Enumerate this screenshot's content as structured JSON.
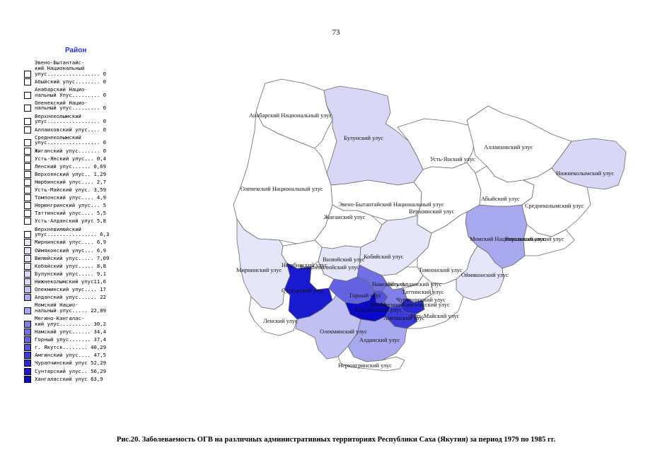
{
  "page_number": "73",
  "legend": {
    "title": "Район",
    "entries": [
      {
        "lines": [
          "Эвено-Бытантайс-",
          "кий Национальный",
          "улус................. 0"
        ],
        "color": "#ffffff"
      },
      {
        "lines": [
          "Абыйский улус........ 0"
        ],
        "color": "#ffffff"
      },
      {
        "lines": [
          "Анабарский Нацио-",
          "нальный Улус......... 0"
        ],
        "color": "#ffffff"
      },
      {
        "lines": [
          "Оленекский Нацио-",
          "нальный улус......... 0"
        ],
        "color": "#ffffff"
      },
      {
        "lines": [
          "Верхнеколымский",
          "улус................. 0"
        ],
        "color": "#ffffff"
      },
      {
        "lines": [
          "Аллаиховский улус.... 0"
        ],
        "color": "#ffffff"
      },
      {
        "lines": [
          "Среднеколымский",
          "улус................. 0"
        ],
        "color": "#ffffff"
      },
      {
        "lines": [
          "Жиганский улус....... 0"
        ],
        "color": "#ffffff"
      },
      {
        "lines": [
          "Усть-Янский улус... 0,4"
        ],
        "color": "#ffffff"
      },
      {
        "lines": [
          "Ленский улус...... 0,69"
        ],
        "color": "#ffffff"
      },
      {
        "lines": [
          "Верхоянский улус.. 1,29"
        ],
        "color": "#ffffff"
      },
      {
        "lines": [
          "Нюрбинский улус.... 2,7"
        ],
        "color": "#ffffff"
      },
      {
        "lines": [
          "Усть-Майский улус. 3,59"
        ],
        "color": "#ffffff"
      },
      {
        "lines": [
          "Томпонский улус.... 4,9"
        ],
        "color": "#ffffff"
      },
      {
        "lines": [
          "Нерюнгринский улус... 5"
        ],
        "color": "#ffffff"
      },
      {
        "lines": [
          "Таттинский улус.... 5,5"
        ],
        "color": "#ffffff"
      },
      {
        "lines": [
          "Усть-Алданский улус 5,8"
        ],
        "color": "#ffffff"
      },
      {
        "lines": [
          "Верхневилюйский",
          "улус................ 6,3"
        ],
        "color": "#ffffff"
      },
      {
        "lines": [
          "Мирнинский улус.... 6,9"
        ],
        "color": "#e6e6fa"
      },
      {
        "lines": [
          "Оймяконский улус... 6,9"
        ],
        "color": "#e6e6fa"
      },
      {
        "lines": [
          "Вилюйский улус..... 7,09"
        ],
        "color": "#e6e6fa"
      },
      {
        "lines": [
          "Кобяйский улус..... 8,8"
        ],
        "color": "#e6e6fa"
      },
      {
        "lines": [
          "Булунский улус..... 9,1"
        ],
        "color": "#d8d8f6"
      },
      {
        "lines": [
          "Нижнеколымский улус11,6"
        ],
        "color": "#d8d8f6"
      },
      {
        "lines": [
          "Олекминский улус.... 17"
        ],
        "color": "#c0c0f2"
      },
      {
        "lines": [
          "Алданский улус...... 22"
        ],
        "color": "#a8a8ee"
      },
      {
        "lines": [
          "Момский Нацио-",
          "нальный улус..... 22,89"
        ],
        "color": "#a8a8ee"
      },
      {
        "lines": [
          "Мегино-Кангалас-",
          "кий улус.......... 30,2"
        ],
        "color": "#8080e8"
      },
      {
        "lines": [
          "Намский улус...... 34,4"
        ],
        "color": "#7070e4"
      },
      {
        "lines": [
          "Горный улус....... 37,4"
        ],
        "color": "#6262e2"
      },
      {
        "lines": [
          "г. Якутск........ 40,29"
        ],
        "color": "#5252dc"
      },
      {
        "lines": [
          "Амгинский улус.... 47,5"
        ],
        "color": "#3a3ad8"
      },
      {
        "lines": [
          "Чурапчинский улус 52,29"
        ],
        "color": "#2a2ad2"
      },
      {
        "lines": [
          "Сунтарский улус.. 56,29"
        ],
        "color": "#1a1ad0"
      },
      {
        "lines": [
          "Хангаласский улус 63,9"
        ],
        "color": "#0a0ac8"
      }
    ]
  },
  "map_labels": {
    "anabar": "Анабарский Национальный улус",
    "bulun": "Булунский улус",
    "allaikh": "Аллаиховский улус",
    "ust_yana": "Усть-Янский улус",
    "nizhnekolym": "Нижнеколымский улус",
    "olenek": "Оленекский Национальный улус",
    "eveno": "Эвено-Бытантайский Национальный улус",
    "verkhoyansk": "Верхоянский улус",
    "abyy": "Абыйский улус",
    "srednekolym": "Среднеколымский улус",
    "zhigansk": "Жиганский улус",
    "momsky": "Момский Национальный улус",
    "verkhnekolym": "Верхнеколымский улус",
    "kobyay": "Кобяйский улус",
    "vilyuy": "Вилюйский улус",
    "nyurba": "Нюрбинский улус",
    "verkhnevilyuy": "Верхневилюйский улус",
    "mirny": "Мирнинский улус",
    "tompo": "Томпонский улус",
    "oymyakon": "Оймяконский улус",
    "suntar": "Сунтарский улус",
    "namsky": "Намский улус",
    "ust_aldan": "Усть-Алданский улус",
    "gorny": "Горный улус",
    "tatta": "Таттинский улус",
    "yakutsk": "г. Якутск",
    "megino": "Мегино-Кангаласский улус",
    "churapcha": "Чурапчинский улус",
    "khangalas": "Хангаласский улус",
    "amga": "Амгинский улус",
    "ust_maya": "Усть-Майский улус",
    "lensk": "Ленский улус",
    "olekminsk": "Олекминский улус",
    "aldan": "Алданский улус",
    "neryungri": "Нерюнгринский улус"
  },
  "caption": "Рис.20. Заболеваемость ОГВ на различных административных территориях Республики Саха (Якутия) за период 1979 по 1985 гг."
}
